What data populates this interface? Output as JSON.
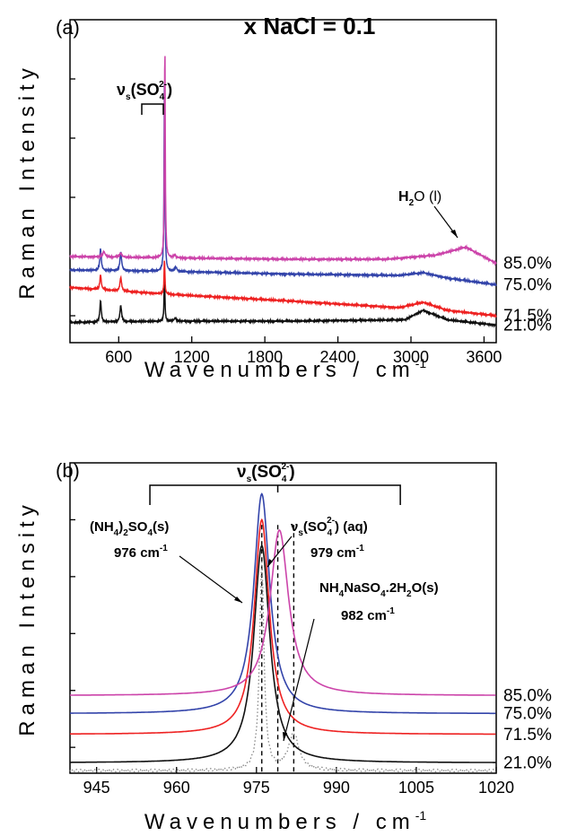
{
  "figure_title": "x NaCl = 0.1",
  "chart_data": [
    {
      "type": "line",
      "panel": "(a)",
      "xlabel": "Wavenumbers / cm",
      "xlabel_sup": "-1",
      "ylabel": "Raman Intensity",
      "xlim": [
        200,
        3700
      ],
      "ylim": [
        0,
        12
      ],
      "xticks": [
        600,
        1200,
        1800,
        2400,
        3000,
        3600
      ],
      "y_tick_labels_shown": false,
      "series": [
        {
          "name": "85.0%",
          "color": "#cc44aa",
          "offset": 3.2,
          "baseline": [
            [
              200,
              0.0
            ],
            [
              1000,
              -0.05
            ],
            [
              2000,
              -0.1
            ],
            [
              2800,
              -0.1
            ],
            [
              3200,
              0.05
            ],
            [
              3450,
              0.35
            ],
            [
              3700,
              -0.25
            ]
          ],
          "peaks": [
            [
              478,
              0.2,
              12
            ],
            [
              617,
              0.15,
              12
            ],
            [
              979,
              8.0,
              4
            ],
            [
              1060,
              0.1,
              10
            ]
          ]
        },
        {
          "name": "75.0%",
          "color": "#3344aa",
          "offset": 2.7,
          "baseline": [
            [
              200,
              0.0
            ],
            [
              1000,
              -0.05
            ],
            [
              2000,
              -0.15
            ],
            [
              2900,
              -0.2
            ],
            [
              3100,
              -0.1
            ],
            [
              3300,
              -0.3
            ],
            [
              3700,
              -0.55
            ]
          ],
          "peaks": [
            [
              451,
              0.8,
              7
            ],
            [
              617,
              0.7,
              8
            ],
            [
              976,
              7.4,
              4
            ],
            [
              1070,
              0.15,
              10
            ]
          ]
        },
        {
          "name": "71.5%",
          "color": "#ee2222",
          "offset": 2.05,
          "baseline": [
            [
              200,
              0.0
            ],
            [
              1000,
              -0.25
            ],
            [
              2000,
              -0.5
            ],
            [
              2900,
              -0.75
            ],
            [
              3100,
              -0.55
            ],
            [
              3300,
              -0.85
            ],
            [
              3700,
              -1.05
            ]
          ],
          "peaks": [
            [
              451,
              0.55,
              7
            ],
            [
              617,
              0.5,
              8
            ],
            [
              976,
              1.3,
              4
            ]
          ]
        },
        {
          "name": "21.0%",
          "color": "#111111",
          "offset": 0.75,
          "baseline": [
            [
              200,
              0.0
            ],
            [
              1000,
              0.05
            ],
            [
              2000,
              0.05
            ],
            [
              2950,
              0.1
            ],
            [
              3100,
              0.45
            ],
            [
              3300,
              0.1
            ],
            [
              3700,
              -0.1
            ]
          ],
          "peaks": [
            [
              451,
              0.8,
              7
            ],
            [
              617,
              0.6,
              8
            ],
            [
              976,
              1.7,
              4
            ],
            [
              1065,
              0.12,
              10
            ]
          ]
        }
      ],
      "annotations": [
        {
          "text": "ν",
          "sub": "s",
          "tail": "(SO",
          "tail_sub": "4",
          "tail_sup": "2-",
          "close": ")"
        },
        {
          "text": "H",
          "sub": "2",
          "tail": "O (l)"
        }
      ]
    },
    {
      "type": "line",
      "panel": "(b)",
      "xlabel": "Wavenumbers / cm",
      "xlabel_sup": "-1",
      "ylabel": "Raman Intensity",
      "xlim": [
        940,
        1020
      ],
      "ylim": [
        0,
        12
      ],
      "xticks": [
        945,
        960,
        975,
        990,
        1005,
        1020
      ],
      "y_tick_labels_shown": false,
      "vlines": [
        976,
        979,
        982
      ],
      "bracket": [
        955,
        1002
      ],
      "series": [
        {
          "name": "85.0%",
          "color": "#cc44aa",
          "offset": 3.0,
          "center": 979.3,
          "height": 6.4,
          "width": 2.1
        },
        {
          "name": "75.0%",
          "color": "#3344aa",
          "offset": 2.3,
          "center": 976.0,
          "height": 8.5,
          "width": 1.8
        },
        {
          "name": "71.5%",
          "color": "#ee2222",
          "offset": 1.5,
          "center": 976.0,
          "height": 8.3,
          "width": 1.7
        },
        {
          "name": "21.0%",
          "color": "#111111",
          "offset": 0.4,
          "center": 976.0,
          "height": 8.4,
          "width": 1.8
        }
      ],
      "dotted_series": {
        "color": "#888888",
        "offset": 0.1,
        "peaks": [
          [
            976,
            8.0,
            0.5
          ],
          [
            982,
            1.4,
            1.2
          ]
        ]
      },
      "annotations": {
        "nu_s": {
          "sym": "ν",
          "sub": "s",
          "tail": "(SO",
          "tail_sub": "4",
          "tail_sup": "2-",
          "close": ")"
        },
        "solid_label": {
          "p1": "(NH",
          "s1": "4",
          "p2": ")",
          "s2": "2",
          "p3": "SO",
          "s3": "4",
          "p4": "(s)"
        },
        "solid_wavenumber": {
          "text": "976 cm",
          "sup": "-1"
        },
        "aq_label": {
          "sym": "ν",
          "sub": "s",
          "tail": "(SO",
          "tail_sub": "4",
          "tail_sup": "2-",
          "close": ") (aq)"
        },
        "aq_wavenumber": {
          "text": "979 cm",
          "sup": "-1"
        },
        "hydrate_label": {
          "p1": "NH",
          "s1": "4",
          "p2": "NaSO",
          "s2": "4",
          "p3": ".2H",
          "s3": "2",
          "p4": "O(s)"
        },
        "hydrate_wavenumber": {
          "text": "982 cm",
          "sup": "-1"
        }
      }
    }
  ]
}
